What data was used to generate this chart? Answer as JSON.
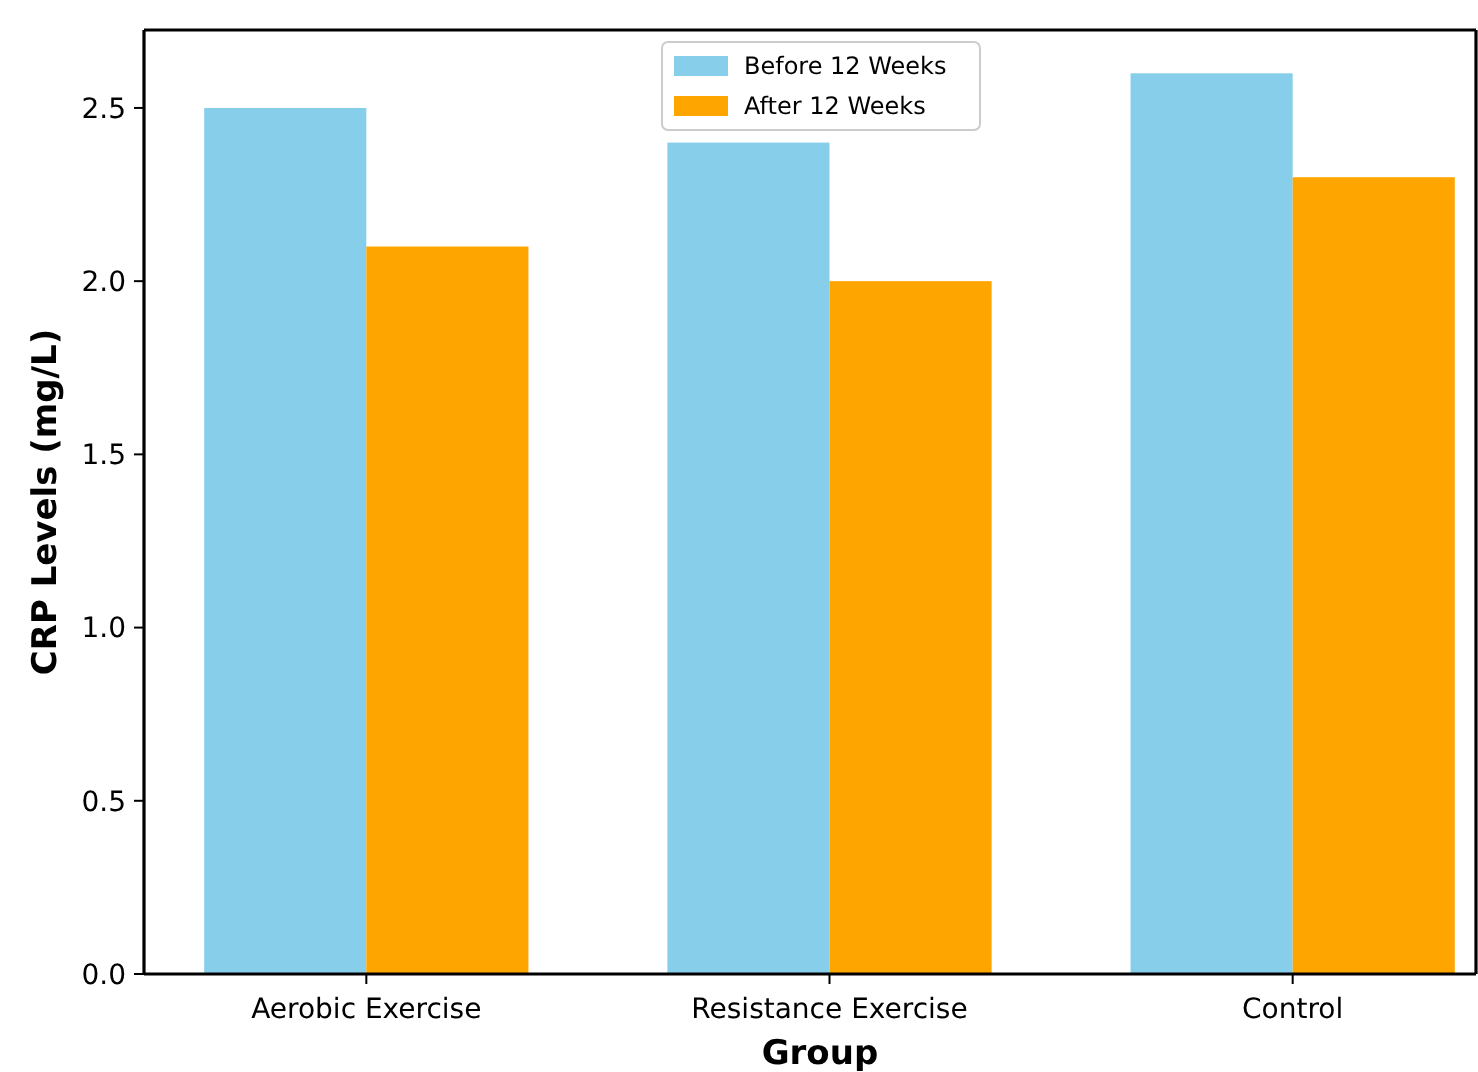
{
  "chart_data": {
    "type": "bar",
    "xlabel": "Group",
    "ylabel": "CRP Levels (mg/L)",
    "categories": [
      "Aerobic Exercise",
      "Resistance Exercise",
      "Control"
    ],
    "series": [
      {
        "name": "Before 12 Weeks",
        "color": "#87ceeb",
        "values": [
          2.5,
          2.4,
          2.6
        ]
      },
      {
        "name": "After 12 Weeks",
        "color": "#ffa500",
        "values": [
          2.1,
          2.0,
          2.3
        ]
      }
    ],
    "ylim": [
      0,
      2.725
    ],
    "yticks": [
      {
        "value": 0,
        "label": "0.0"
      },
      {
        "value": 0.5,
        "label": "0.5"
      },
      {
        "value": 1,
        "label": "1.0"
      },
      {
        "value": 1.5,
        "label": "1.5"
      },
      {
        "value": 2,
        "label": "2.0"
      },
      {
        "value": 2.5,
        "label": "2.5"
      }
    ],
    "legend": "top"
  }
}
